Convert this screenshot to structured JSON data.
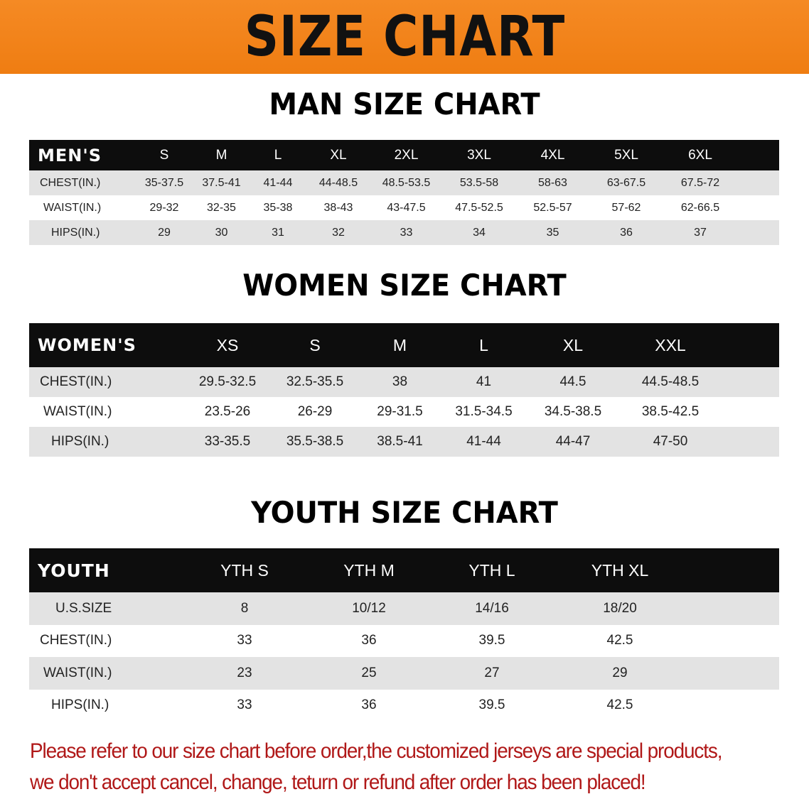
{
  "banner": {
    "title": "SIZE CHART",
    "color": "#ef7d12"
  },
  "men": {
    "title": "MAN SIZE CHART",
    "header": "MEN'S",
    "sizes": [
      "S",
      "M",
      "L",
      "XL",
      "2XL",
      "3XL",
      "4XL",
      "5XL",
      "6XL"
    ],
    "rows": [
      {
        "label": "CHEST(IN.)",
        "values": [
          "35-37.5",
          "37.5-41",
          "41-44",
          "44-48.5",
          "48.5-53.5",
          "53.5-58",
          "58-63",
          "63-67.5",
          "67.5-72"
        ]
      },
      {
        "label": "WAIST(IN.)",
        "values": [
          "29-32",
          "32-35",
          "35-38",
          "38-43",
          "43-47.5",
          "47.5-52.5",
          "52.5-57",
          "57-62",
          "62-66.5"
        ]
      },
      {
        "label": "HIPS(IN.)",
        "values": [
          "29",
          "30",
          "31",
          "32",
          "33",
          "34",
          "35",
          "36",
          "37"
        ]
      }
    ]
  },
  "women": {
    "title": "WOMEN SIZE CHART",
    "header": "WOMEN'S",
    "sizes": [
      "XS",
      "S",
      "M",
      "L",
      "XL",
      "XXL"
    ],
    "rows": [
      {
        "label": "CHEST(IN.)",
        "values": [
          "29.5-32.5",
          "32.5-35.5",
          "38",
          "41",
          "44.5",
          "44.5-48.5"
        ]
      },
      {
        "label": "WAIST(IN.)",
        "values": [
          "23.5-26",
          "26-29",
          "29-31.5",
          "31.5-34.5",
          "34.5-38.5",
          "38.5-42.5"
        ]
      },
      {
        "label": "HIPS(IN.)",
        "values": [
          "33-35.5",
          "35.5-38.5",
          "38.5-41",
          "41-44",
          "44-47",
          "47-50"
        ]
      }
    ]
  },
  "youth": {
    "title": "YOUTH SIZE CHART",
    "header": "YOUTH",
    "sizes": [
      "YTH S",
      "YTH M",
      "YTH L",
      "YTH XL"
    ],
    "rows": [
      {
        "label": "U.S.SIZE",
        "values": [
          "8",
          "10/12",
          "14/16",
          "18/20"
        ]
      },
      {
        "label": "CHEST(IN.)",
        "values": [
          "33",
          "36",
          "39.5",
          "42.5"
        ]
      },
      {
        "label": "WAIST(IN.)",
        "values": [
          "23",
          "25",
          "27",
          "29"
        ]
      },
      {
        "label": "HIPS(IN.)",
        "values": [
          "33",
          "36",
          "39.5",
          "42.5"
        ]
      }
    ]
  },
  "note": {
    "line1": "Please refer to our size chart before order,the customized jerseys are special products,",
    "line2": "we don't accept cancel, change, teturn or refund after order has been placed!",
    "color": "#b01818"
  }
}
